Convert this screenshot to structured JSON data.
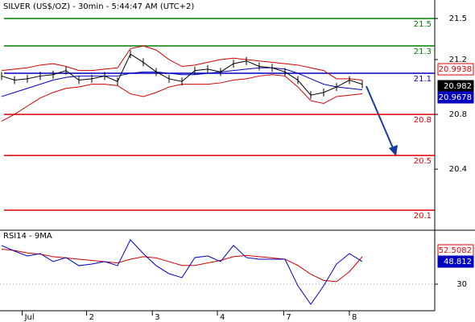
{
  "chart_data": [
    {
      "type": "line",
      "title": "SILVER (US$/OZ) - 30min - 5:44:47 AM (UTC+2)",
      "ylim": [
        19.96,
        21.635
      ],
      "yticks": [
        21.5,
        21.2,
        20.8,
        20.4
      ],
      "series": [
        {
          "color": "#d00000",
          "values": [
            21.12,
            21.13,
            21.14,
            21.16,
            21.17,
            21.15,
            21.12,
            21.12,
            21.13,
            21.14,
            21.28,
            21.3,
            21.27,
            21.2,
            21.15,
            21.16,
            21.18,
            21.2,
            21.21,
            21.2,
            21.19,
            21.18,
            21.17,
            21.16,
            21.14,
            21.12,
            21.06,
            21.06,
            21.05
          ]
        },
        {
          "color": "#d00000",
          "values": [
            20.75,
            20.8,
            20.86,
            20.92,
            20.96,
            20.99,
            21.0,
            21.02,
            21.02,
            21.01,
            20.95,
            20.93,
            20.96,
            21.0,
            21.02,
            21.02,
            21.02,
            21.03,
            21.05,
            21.06,
            21.08,
            21.09,
            21.08,
            21.0,
            20.9,
            20.88,
            20.93,
            20.94,
            20.95
          ]
        },
        {
          "color": "#0000c0",
          "values": [
            20.93,
            20.96,
            20.99,
            21.02,
            21.05,
            21.07,
            21.08,
            21.08,
            21.08,
            21.08,
            21.1,
            21.11,
            21.11,
            21.1,
            21.09,
            21.09,
            21.1,
            21.11,
            21.12,
            21.13,
            21.14,
            21.14,
            21.13,
            21.1,
            21.06,
            21.02,
            21.0,
            20.99,
            20.98
          ]
        },
        {
          "color": "#000000",
          "values": [
            21.08,
            21.05,
            21.06,
            21.08,
            21.09,
            21.12,
            21.05,
            21.06,
            21.08,
            21.04,
            21.24,
            21.18,
            21.11,
            21.06,
            21.04,
            21.12,
            21.13,
            21.11,
            21.17,
            21.19,
            21.15,
            21.14,
            21.11,
            21.05,
            20.94,
            20.96,
            21.0,
            21.05,
            21.02
          ]
        }
      ],
      "levels": [
        {
          "value": 21.5,
          "color": "#008000"
        },
        {
          "value": 21.3,
          "color": "#008000"
        },
        {
          "value": 21.1,
          "color": "#0000c0"
        },
        {
          "value": 20.8,
          "color": "#e00000"
        },
        {
          "value": 20.5,
          "color": "#e00000"
        },
        {
          "value": 20.1,
          "color": "#e00000"
        }
      ],
      "price_boxes": [
        {
          "value": 20.9938,
          "color": "#e00000",
          "fill": "#ffffff"
        },
        {
          "value": 20.982,
          "color": "#000000",
          "fill": "#000000"
        },
        {
          "value": 20.9678,
          "color": "#0000c0",
          "fill": "#0000c0"
        }
      ]
    },
    {
      "type": "line",
      "title": "RSI14 - 9MA",
      "ylim": [
        9.4,
        70.6
      ],
      "yticks": [
        30
      ],
      "series": [
        {
          "color": "#d00000",
          "values": [
            58,
            57,
            55,
            54,
            52,
            51,
            50,
            49,
            48,
            47,
            50,
            52,
            51,
            48,
            45,
            45,
            47,
            49,
            52,
            53,
            52,
            51,
            50,
            45,
            38,
            33,
            32,
            40,
            52
          ]
        },
        {
          "color": "#0000c0",
          "values": [
            61.0,
            56.5,
            52.6,
            54.5,
            48.1,
            51.3,
            44.8,
            46.1,
            48.1,
            44.8,
            65.5,
            54.5,
            44.8,
            38.4,
            35.2,
            51.3,
            52.6,
            48.1,
            61.0,
            51.3,
            50.0,
            50.0,
            50.0,
            28.7,
            13.9,
            28.7,
            46.1,
            54.5,
            48.1
          ]
        }
      ],
      "price_boxes": [
        {
          "value": 52.5082,
          "color": "#e00000",
          "fill": "#ffffff"
        },
        {
          "value": 48.812,
          "color": "#0000c0",
          "fill": "#0000c0"
        }
      ],
      "xticks": [
        {
          "value": 1.6,
          "label": "Jul"
        },
        {
          "value": 6.6,
          "label": "2"
        },
        {
          "value": 11.7,
          "label": "3"
        },
        {
          "value": 16.75,
          "label": "4"
        },
        {
          "value": 21.9,
          "label": "7"
        },
        {
          "value": 27.0,
          "label": "8"
        }
      ]
    }
  ]
}
